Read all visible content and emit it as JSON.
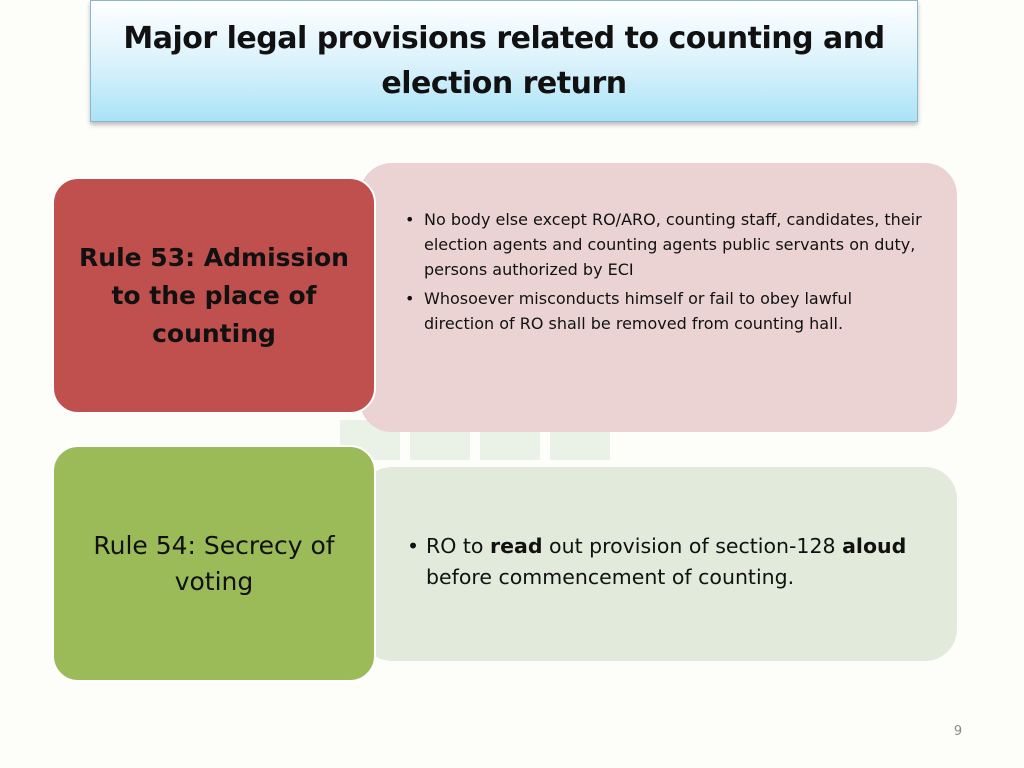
{
  "slide": {
    "title": "Major legal provisions related to counting and election return",
    "page_number": "9"
  },
  "rules": [
    {
      "heading": "Rule 53: Admission to the place of counting",
      "color": "#c0504d",
      "panel_color": "#ebd3d4",
      "bullets": [
        {
          "text": "No body else except RO/ARO, counting staff, candidates, their election agents and counting agents public servants on duty, persons authorized by ECI"
        },
        {
          "text": "Whosoever misconducts himself or fail to obey lawful direction of RO shall  be removed from counting hall."
        }
      ]
    },
    {
      "heading": "Rule 54: Secrecy of voting",
      "color": "#9bbb59",
      "panel_color": "#e2eadb",
      "bullets": [
        {
          "parts": {
            "a": "RO to ",
            "b": "read",
            "c": " out provision of section-128 ",
            "d": "aloud",
            "e": " before commencement of counting."
          }
        }
      ]
    }
  ],
  "icons": {
    "bullet": "bullet-dot-icon",
    "watermark": "building-watermark-icon"
  }
}
